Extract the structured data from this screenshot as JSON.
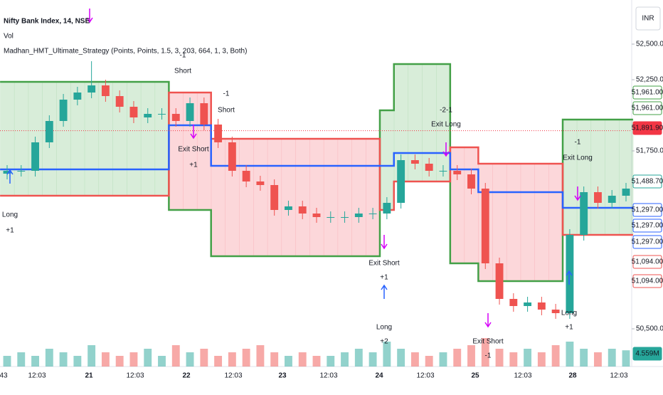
{
  "chart_data": {
    "type": "candlestick",
    "title": "Nifty Bank Index, 14, NSE",
    "volume_title": "Vol",
    "indicator_title": "Madhan_HMT_Ultimate_Strategy (Points, Points, 1.5, 3, 203, 664, 1, 3, Both)",
    "currency": "INR",
    "ylim": [
      50235,
      52810
    ],
    "yticks": [
      {
        "value": 52500,
        "label": "52,500.00"
      },
      {
        "value": 52250,
        "label": "52,250.00"
      },
      {
        "value": 51750,
        "label": "51,750.00"
      },
      {
        "value": 50500,
        "label": "50,500.00"
      }
    ],
    "time_labels": [
      "43",
      "12:03",
      "21",
      "12:03",
      "22",
      "12:03",
      "23",
      "12:03",
      "24",
      "12:03",
      "25",
      "12:03",
      "28",
      "12:03"
    ],
    "up_color": "#26a69a",
    "down_color": "#ef5350",
    "open": [
      51590,
      51610,
      51610,
      51810,
      51960,
      52110,
      52160,
      52210,
      52135,
      52060,
      51985,
      52010,
      52010,
      51960,
      52085,
      51935,
      51810,
      51610,
      51535,
      51510,
      51335,
      51360,
      51310,
      51285,
      51285,
      51285,
      51310,
      51310,
      51385,
      51685,
      51660,
      51610,
      51610,
      51585,
      51485,
      50960,
      50710,
      50660,
      50685,
      50635,
      50610,
      51160,
      51460,
      51385,
      51435
    ],
    "high": [
      51650,
      51650,
      51850,
      52000,
      52150,
      52200,
      52380,
      52250,
      52175,
      52100,
      52050,
      52050,
      52050,
      52125,
      52125,
      51975,
      51850,
      51650,
      51575,
      51550,
      51400,
      51400,
      51350,
      51325,
      51325,
      51350,
      51350,
      51425,
      51725,
      51725,
      51700,
      51650,
      51650,
      51625,
      51525,
      51000,
      50750,
      50725,
      50725,
      50675,
      51200,
      51500,
      51500,
      51475,
      51525
    ],
    "low": [
      51550,
      51570,
      51570,
      51770,
      51920,
      52070,
      52120,
      52095,
      52020,
      51945,
      51945,
      51970,
      51920,
      51920,
      51895,
      51770,
      51570,
      51495,
      51470,
      51295,
      51295,
      51270,
      51245,
      51245,
      51245,
      51245,
      51270,
      51270,
      51345,
      51620,
      51570,
      51570,
      51545,
      51445,
      50920,
      50670,
      50620,
      50620,
      50595,
      50570,
      50570,
      51120,
      51345,
      51345,
      51395
    ],
    "close": [
      51610,
      51610,
      51810,
      51960,
      52110,
      52160,
      52210,
      52135,
      52060,
      51985,
      52010,
      52010,
      51960,
      52085,
      51935,
      51810,
      51610,
      51535,
      51510,
      51335,
      51360,
      51310,
      51285,
      51285,
      51285,
      51310,
      51310,
      51385,
      51685,
      51660,
      51610,
      51610,
      51585,
      51485,
      50960,
      50710,
      50660,
      50685,
      50635,
      50610,
      51160,
      51460,
      51385,
      51435,
      51485
    ],
    "volume": [
      3,
      4,
      3,
      5,
      4,
      3,
      6,
      4,
      3,
      4,
      5,
      3,
      6,
      4,
      5,
      3,
      4,
      5,
      6,
      4,
      3,
      4,
      3,
      3,
      4,
      5,
      4,
      7,
      5,
      4,
      3,
      4,
      5,
      6,
      8,
      5,
      4,
      5,
      4,
      6,
      7,
      5,
      4,
      5,
      4.559
    ],
    "volume_ylim": [
      0,
      12
    ],
    "volume_label": {
      "value": 4.559,
      "label": "4.559M"
    },
    "bands": [
      {
        "color": "#43a047",
        "values": [
          52235,
          52235,
          52235,
          52235,
          52235,
          52235,
          52235,
          52235,
          52235,
          52235,
          52235,
          52235,
          51335,
          51335,
          51335,
          51010,
          51010,
          51010,
          51010,
          51010,
          51010,
          51010,
          51010,
          51010,
          51010,
          51010,
          51010,
          52035,
          52360,
          52360,
          52360,
          52360,
          50960,
          50960,
          50835,
          50835,
          50835,
          50835,
          50835,
          50835,
          51970,
          51970,
          51970,
          51970,
          51970
        ]
      },
      {
        "color": "#ef5350",
        "values": [
          51435,
          51435,
          51435,
          51435,
          51435,
          51435,
          51435,
          51435,
          51435,
          51435,
          51435,
          51435,
          52160,
          52160,
          52160,
          51835,
          51835,
          51835,
          51835,
          51835,
          51835,
          51835,
          51835,
          51835,
          51835,
          51835,
          51835,
          51335,
          51535,
          51535,
          51535,
          51535,
          51775,
          51775,
          51660,
          51660,
          51660,
          51660,
          51660,
          51660,
          51160,
          51160,
          51160,
          51160,
          51160
        ]
      },
      {
        "color": "#2962ff",
        "values": [
          51620,
          51620,
          51620,
          51620,
          51620,
          51620,
          51620,
          51620,
          51620,
          51620,
          51620,
          51620,
          51930,
          51930,
          51930,
          51645,
          51645,
          51645,
          51645,
          51645,
          51645,
          51645,
          51645,
          51645,
          51645,
          51645,
          51645,
          51645,
          51735,
          51735,
          51735,
          51735,
          51620,
          51620,
          51460,
          51460,
          51460,
          51460,
          51460,
          51460,
          51350,
          51350,
          51350,
          51350,
          51350
        ]
      }
    ],
    "last_price": {
      "value": 51891.9,
      "label": "51,891.90",
      "color": "#f23645"
    },
    "price_tags": [
      {
        "value": 51961,
        "label": "51,961.00",
        "color": "#43a047"
      },
      {
        "value": 51961,
        "label": "51,961.00",
        "color": "#43a047"
      },
      {
        "value": 51488.7,
        "label": "51,488.70",
        "color": "#26a69a"
      },
      {
        "value": 51297,
        "label": "51,297.00",
        "color": "#2962ff"
      },
      {
        "value": 51297,
        "label": "51,297.00",
        "color": "#2962ff"
      },
      {
        "value": 51297,
        "label": "51,297.00",
        "color": "#2962ff"
      },
      {
        "value": 51094,
        "label": "51,094.00",
        "color": "#ef5350"
      },
      {
        "value": 51094,
        "label": "51,094.00",
        "color": "#ef5350"
      }
    ],
    "annotations": [
      "Long",
      "+1",
      "-1",
      "Short",
      "-1",
      "Short",
      "Exit Short",
      "+1",
      "Exit Short",
      "+1",
      "Long",
      "+2",
      "-2-1",
      "Exit Long",
      "-1",
      "Exit Long",
      "Long",
      "+1",
      "Exit Short",
      "-1"
    ]
  }
}
